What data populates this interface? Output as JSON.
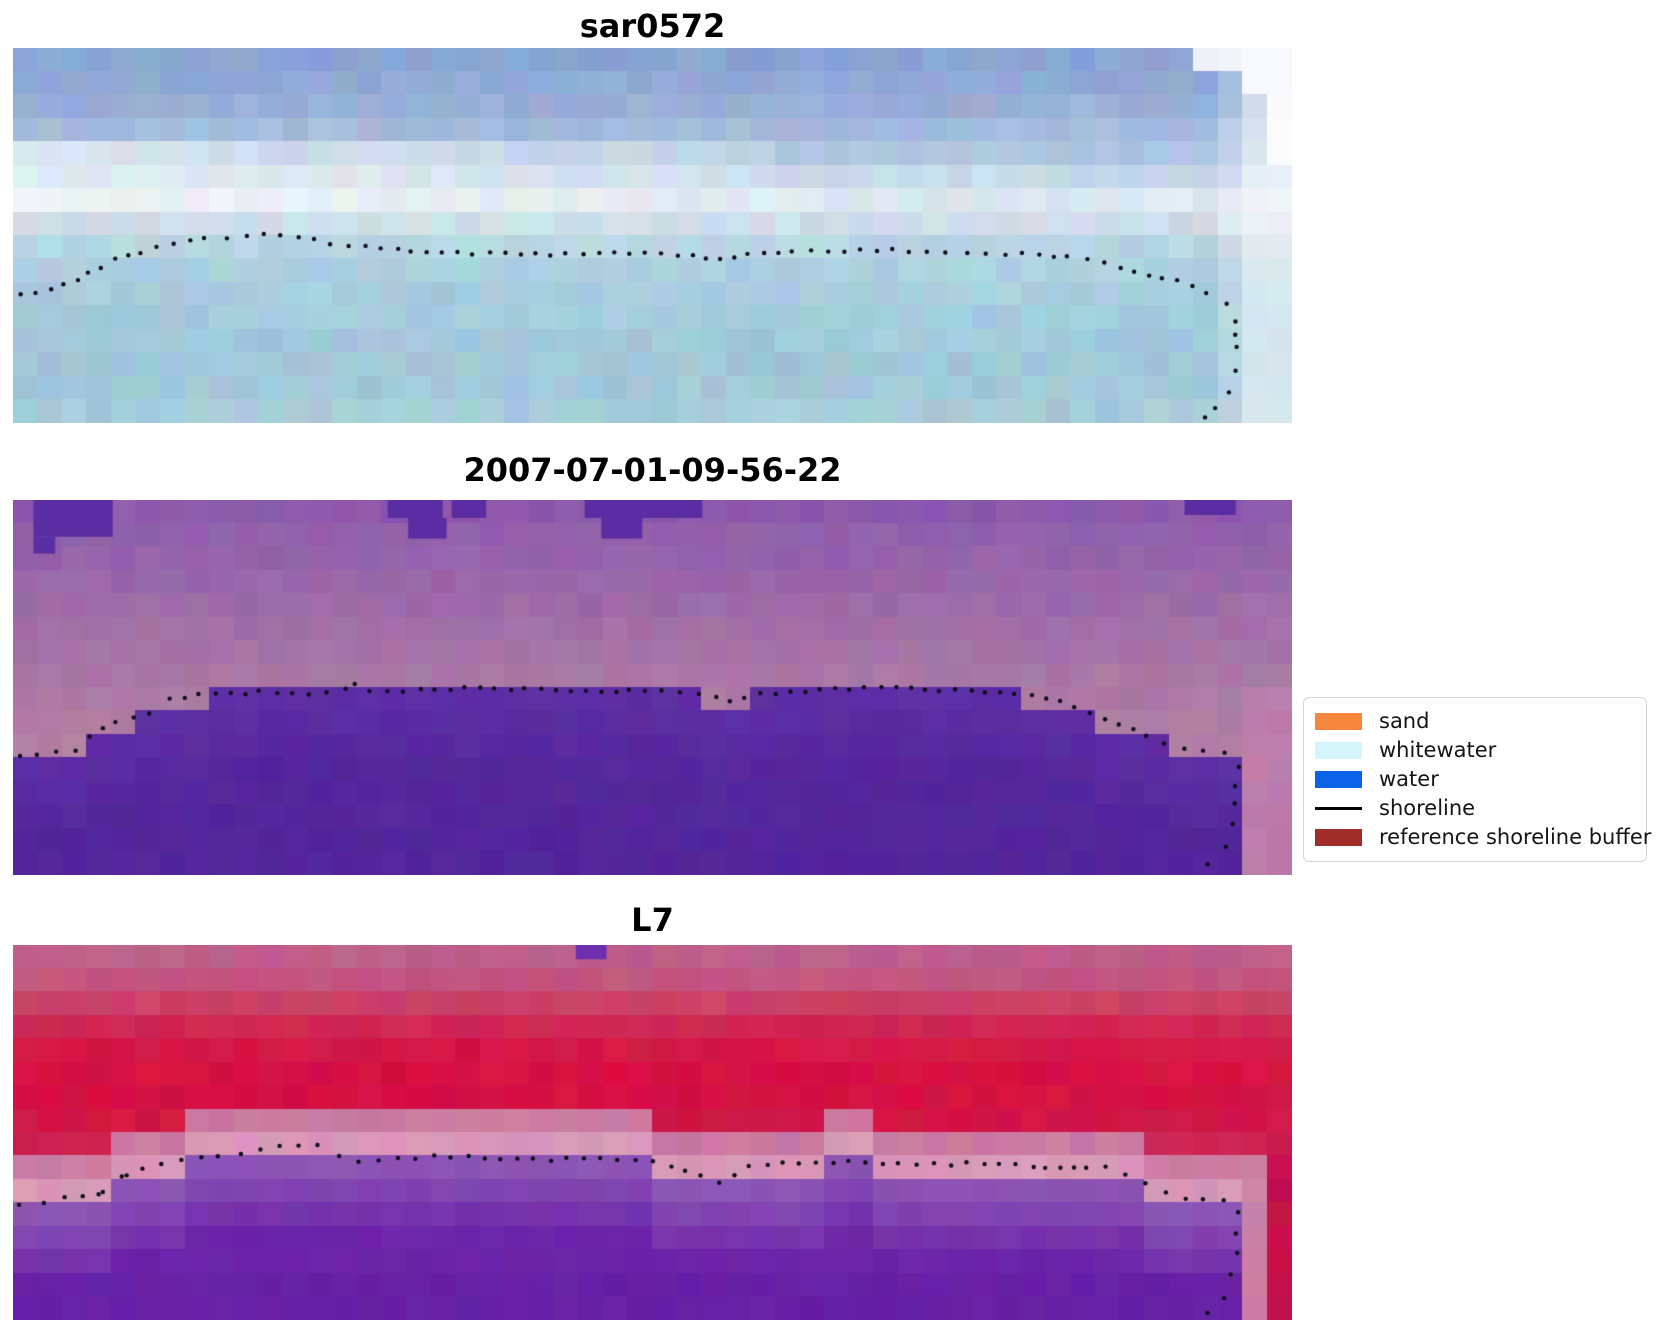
{
  "chart_data": {
    "type": "image",
    "figure_kind": "three stacked co-registered coastal satellite image panels with detected shoreline dots and a classification legend",
    "panels": [
      {
        "title": "sar0572",
        "appearance": "pixelated blue/cyan SAR backscatter image, white haze band, image fades to white at right edge",
        "palette_rows": [
          "#8aa4d3",
          "#90a9d5",
          "#99b0d7",
          "#a3bbdb",
          "#afc8e0",
          "#c6d9e8",
          "#dde7ee",
          "#cfdfe9",
          "#b9d6e3",
          "#add0df",
          "#a8cdde",
          "#a5cbdc",
          "#a2c9da",
          "#a0c8d9",
          "#a2c9d9",
          "#a6cbda"
        ],
        "noise": 8,
        "fade_right": true,
        "bright_band": {
          "rows": [
            4,
            6
          ],
          "max_col": 30,
          "strength": 0.38
        },
        "shoreline": {
          "color": "#0c0c16",
          "radius": 2.2,
          "spacing": 17,
          "points": [
            [
              0.005,
              0.655
            ],
            [
              0.03,
              0.645
            ],
            [
              0.05,
              0.62
            ],
            [
              0.068,
              0.585
            ],
            [
              0.08,
              0.56
            ],
            [
              0.1,
              0.545
            ],
            [
              0.125,
              0.522
            ],
            [
              0.15,
              0.51
            ],
            [
              0.183,
              0.5
            ],
            [
              0.21,
              0.498
            ],
            [
              0.235,
              0.512
            ],
            [
              0.262,
              0.528
            ],
            [
              0.3,
              0.538
            ],
            [
              0.36,
              0.548
            ],
            [
              0.42,
              0.55
            ],
            [
              0.47,
              0.545
            ],
            [
              0.52,
              0.55
            ],
            [
              0.553,
              0.565
            ],
            [
              0.575,
              0.552
            ],
            [
              0.61,
              0.545
            ],
            [
              0.65,
              0.54
            ],
            [
              0.7,
              0.54
            ],
            [
              0.745,
              0.545
            ],
            [
              0.79,
              0.55
            ],
            [
              0.825,
              0.555
            ],
            [
              0.853,
              0.57
            ],
            [
              0.877,
              0.598
            ],
            [
              0.91,
              0.618
            ],
            [
              0.933,
              0.652
            ],
            [
              0.95,
              0.68
            ],
            [
              0.956,
              0.73
            ],
            [
              0.957,
              0.8
            ],
            [
              0.956,
              0.86
            ],
            [
              0.95,
              0.92
            ],
            [
              0.94,
              0.96
            ],
            [
              0.932,
              0.985
            ]
          ]
        }
      },
      {
        "title": "2007-07-01-09-56-22",
        "appearance": "pixelated mauve/orchid land with deep indigo classified water mass and indigo cloud patches along top edge",
        "palette_rows": [
          "#8c59ac",
          "#9160ab",
          "#9563aa",
          "#9967a9",
          "#9d6ba8",
          "#a16fa7",
          "#a573a6",
          "#a977a5",
          "#ac7aa4",
          "#af7da4",
          "#b280a4",
          "#b482a4",
          "#b684a5",
          "#b886a6",
          "#ba87a7",
          "#bc89a9"
        ],
        "noise": 5,
        "water": {
          "top": "#5d2ea4",
          "deep": "#54279b",
          "bottom": "#51259a",
          "points": [
            [
              0.0,
              0.7
            ],
            [
              0.04,
              0.67
            ],
            [
              0.055,
              0.635
            ],
            [
              0.075,
              0.6
            ],
            [
              0.1,
              0.575
            ],
            [
              0.12,
              0.535
            ],
            [
              0.145,
              0.52
            ],
            [
              0.19,
              0.51
            ],
            [
              0.23,
              0.515
            ],
            [
              0.258,
              0.505
            ],
            [
              0.266,
              0.487
            ],
            [
              0.278,
              0.51
            ],
            [
              0.318,
              0.505
            ],
            [
              0.365,
              0.5
            ],
            [
              0.412,
              0.505
            ],
            [
              0.459,
              0.51
            ],
            [
              0.506,
              0.505
            ],
            [
              0.537,
              0.515
            ],
            [
              0.561,
              0.532
            ],
            [
              0.584,
              0.515
            ],
            [
              0.631,
              0.505
            ],
            [
              0.678,
              0.5
            ],
            [
              0.725,
              0.505
            ],
            [
              0.772,
              0.51
            ],
            [
              0.819,
              0.532
            ],
            [
              0.854,
              0.58
            ],
            [
              0.886,
              0.627
            ],
            [
              0.916,
              0.665
            ],
            [
              0.947,
              0.673
            ],
            [
              0.9555,
              0.68
            ],
            [
              0.956,
              1.0
            ]
          ]
        },
        "patch_color": "#5b2da2",
        "patches": [
          {
            "x": 0.016,
            "y": 0,
            "w": 0.062,
            "h": 0.098
          },
          {
            "x": 0.016,
            "y": 0.098,
            "w": 0.017,
            "h": 0.045
          },
          {
            "x": 0.293,
            "y": 0,
            "w": 0.043,
            "h": 0.048
          },
          {
            "x": 0.309,
            "y": 0.048,
            "w": 0.03,
            "h": 0.055
          },
          {
            "x": 0.343,
            "y": 0,
            "w": 0.027,
            "h": 0.048
          },
          {
            "x": 0.447,
            "y": 0,
            "w": 0.092,
            "h": 0.048
          },
          {
            "x": 0.46,
            "y": 0.048,
            "w": 0.032,
            "h": 0.055
          },
          {
            "x": 0.916,
            "y": 0,
            "w": 0.04,
            "h": 0.04
          }
        ],
        "right_land": {
          "min_row": 8,
          "strips": [
            {
              "min_col": 50,
              "color": "#bd7caa"
            }
          ]
        },
        "shoreline": {
          "color": "#0c0c16",
          "radius": 2.2,
          "spacing": 17,
          "points": [
            [
              0.005,
              0.685
            ],
            [
              0.048,
              0.667
            ],
            [
              0.06,
              0.627
            ],
            [
              0.08,
              0.592
            ],
            [
              0.107,
              0.573
            ],
            [
              0.123,
              0.533
            ],
            [
              0.146,
              0.52
            ],
            [
              0.193,
              0.512
            ],
            [
              0.232,
              0.517
            ],
            [
              0.26,
              0.507
            ],
            [
              0.267,
              0.488
            ],
            [
              0.279,
              0.512
            ],
            [
              0.318,
              0.507
            ],
            [
              0.365,
              0.5
            ],
            [
              0.412,
              0.507
            ],
            [
              0.459,
              0.512
            ],
            [
              0.506,
              0.507
            ],
            [
              0.537,
              0.517
            ],
            [
              0.561,
              0.533
            ],
            [
              0.584,
              0.517
            ],
            [
              0.631,
              0.507
            ],
            [
              0.678,
              0.5
            ],
            [
              0.725,
              0.507
            ],
            [
              0.772,
              0.512
            ],
            [
              0.819,
              0.533
            ],
            [
              0.854,
              0.581
            ],
            [
              0.886,
              0.627
            ],
            [
              0.916,
              0.667
            ],
            [
              0.947,
              0.675
            ],
            [
              0.958,
              0.709
            ],
            [
              0.956,
              0.76
            ],
            [
              0.956,
              0.811
            ],
            [
              0.953,
              0.867
            ],
            [
              0.948,
              0.923
            ],
            [
              0.934,
              0.971
            ]
          ]
        }
      },
      {
        "title": "L7",
        "appearance": "pixelated false-color Landsat 7: crimson land, pale-pink beach band, violet/purple water, red strip wrapping right edge",
        "palette_rows": [
          "#bd5f8a",
          "#c25680",
          "#c94166",
          "#cf2753",
          "#d31747",
          "#d51243",
          "#d41144",
          "#d11646",
          "#cc2351",
          "#c63d66",
          "#ca739c",
          "#cb7aa1",
          "#cc80a6",
          "#cd84a9",
          "#ce87ac",
          "#cf8aae"
        ],
        "noise": 6,
        "water": {
          "top": "#8a54b4",
          "deep": "#6b24a8",
          "bottom": "#601da1",
          "points": [
            [
              0.0,
              0.7
            ],
            [
              0.04,
              0.68
            ],
            [
              0.07,
              0.66
            ],
            [
              0.09,
              0.615
            ],
            [
              0.12,
              0.585
            ],
            [
              0.15,
              0.565
            ],
            [
              0.18,
              0.558
            ],
            [
              0.21,
              0.538
            ],
            [
              0.24,
              0.538
            ],
            [
              0.26,
              0.57
            ],
            [
              0.29,
              0.575
            ],
            [
              0.35,
              0.57
            ],
            [
              0.42,
              0.575
            ],
            [
              0.47,
              0.572
            ],
            [
              0.51,
              0.59
            ],
            [
              0.545,
              0.63
            ],
            [
              0.565,
              0.61
            ],
            [
              0.59,
              0.585
            ],
            [
              0.65,
              0.58
            ],
            [
              0.72,
              0.585
            ],
            [
              0.78,
              0.585
            ],
            [
              0.82,
              0.595
            ],
            [
              0.855,
              0.6
            ],
            [
              0.875,
              0.625
            ],
            [
              0.9,
              0.665
            ],
            [
              0.92,
              0.678
            ],
            [
              0.946,
              0.682
            ],
            [
              0.9555,
              0.688
            ],
            [
              0.956,
              1.0
            ]
          ]
        },
        "patch_color": "#6e2fae",
        "patches": [
          {
            "x": 0.44,
            "y": 0,
            "w": 0.024,
            "h": 0.038
          }
        ],
        "pink_band": {
          "near": "#d898b8",
          "far": "#cb7aa1"
        },
        "right_land": {
          "min_row": 9,
          "strips": [
            {
              "min_col": 50,
              "color": "#cc7fa5"
            },
            {
              "min_col": 51,
              "color": "#c5124a"
            }
          ]
        },
        "shoreline": {
          "color": "#0c0c16",
          "radius": 2.2,
          "spacing": 17,
          "points": [
            [
              0.005,
              0.693
            ],
            [
              0.024,
              0.685
            ],
            [
              0.041,
              0.675
            ],
            [
              0.055,
              0.672
            ],
            [
              0.066,
              0.661
            ],
            [
              0.071,
              0.656
            ],
            [
              0.085,
              0.619
            ],
            [
              0.09,
              0.613
            ],
            [
              0.102,
              0.595
            ],
            [
              0.117,
              0.584
            ],
            [
              0.132,
              0.571
            ],
            [
              0.148,
              0.563
            ],
            [
              0.16,
              0.56
            ],
            [
              0.178,
              0.557
            ],
            [
              0.193,
              0.547
            ],
            [
              0.209,
              0.536
            ],
            [
              0.224,
              0.533
            ],
            [
              0.239,
              0.536
            ],
            [
              0.254,
              0.563
            ],
            [
              0.271,
              0.576
            ],
            [
              0.286,
              0.573
            ],
            [
              0.33,
              0.565
            ],
            [
              0.381,
              0.568
            ],
            [
              0.42,
              0.573
            ],
            [
              0.459,
              0.568
            ],
            [
              0.5,
              0.578
            ],
            [
              0.515,
              0.59
            ],
            [
              0.537,
              0.615
            ],
            [
              0.553,
              0.632
            ],
            [
              0.565,
              0.613
            ],
            [
              0.576,
              0.59
            ],
            [
              0.615,
              0.581
            ],
            [
              0.654,
              0.579
            ],
            [
              0.693,
              0.581
            ],
            [
              0.733,
              0.584
            ],
            [
              0.772,
              0.581
            ],
            [
              0.797,
              0.589
            ],
            [
              0.819,
              0.592
            ],
            [
              0.839,
              0.592
            ],
            [
              0.854,
              0.592
            ],
            [
              0.87,
              0.611
            ],
            [
              0.886,
              0.637
            ],
            [
              0.901,
              0.661
            ],
            [
              0.916,
              0.675
            ],
            [
              0.931,
              0.677
            ],
            [
              0.946,
              0.68
            ],
            [
              0.958,
              0.715
            ],
            [
              0.956,
              0.768
            ],
            [
              0.956,
              0.819
            ],
            [
              0.953,
              0.875
            ],
            [
              0.948,
              0.939
            ],
            [
              0.934,
              0.981
            ]
          ]
        }
      }
    ],
    "legend": {
      "entries": [
        {
          "label": "sand",
          "swatch": "patch",
          "color": "#f5873c"
        },
        {
          "label": "whitewater",
          "swatch": "patch",
          "color": "#d4f6fa"
        },
        {
          "label": "water",
          "swatch": "patch",
          "color": "#0d63e8"
        },
        {
          "label": "shoreline",
          "swatch": "line",
          "color": "#000000"
        },
        {
          "label": "reference shoreline buffer",
          "swatch": "patch",
          "color": "#a02d27"
        }
      ]
    }
  }
}
